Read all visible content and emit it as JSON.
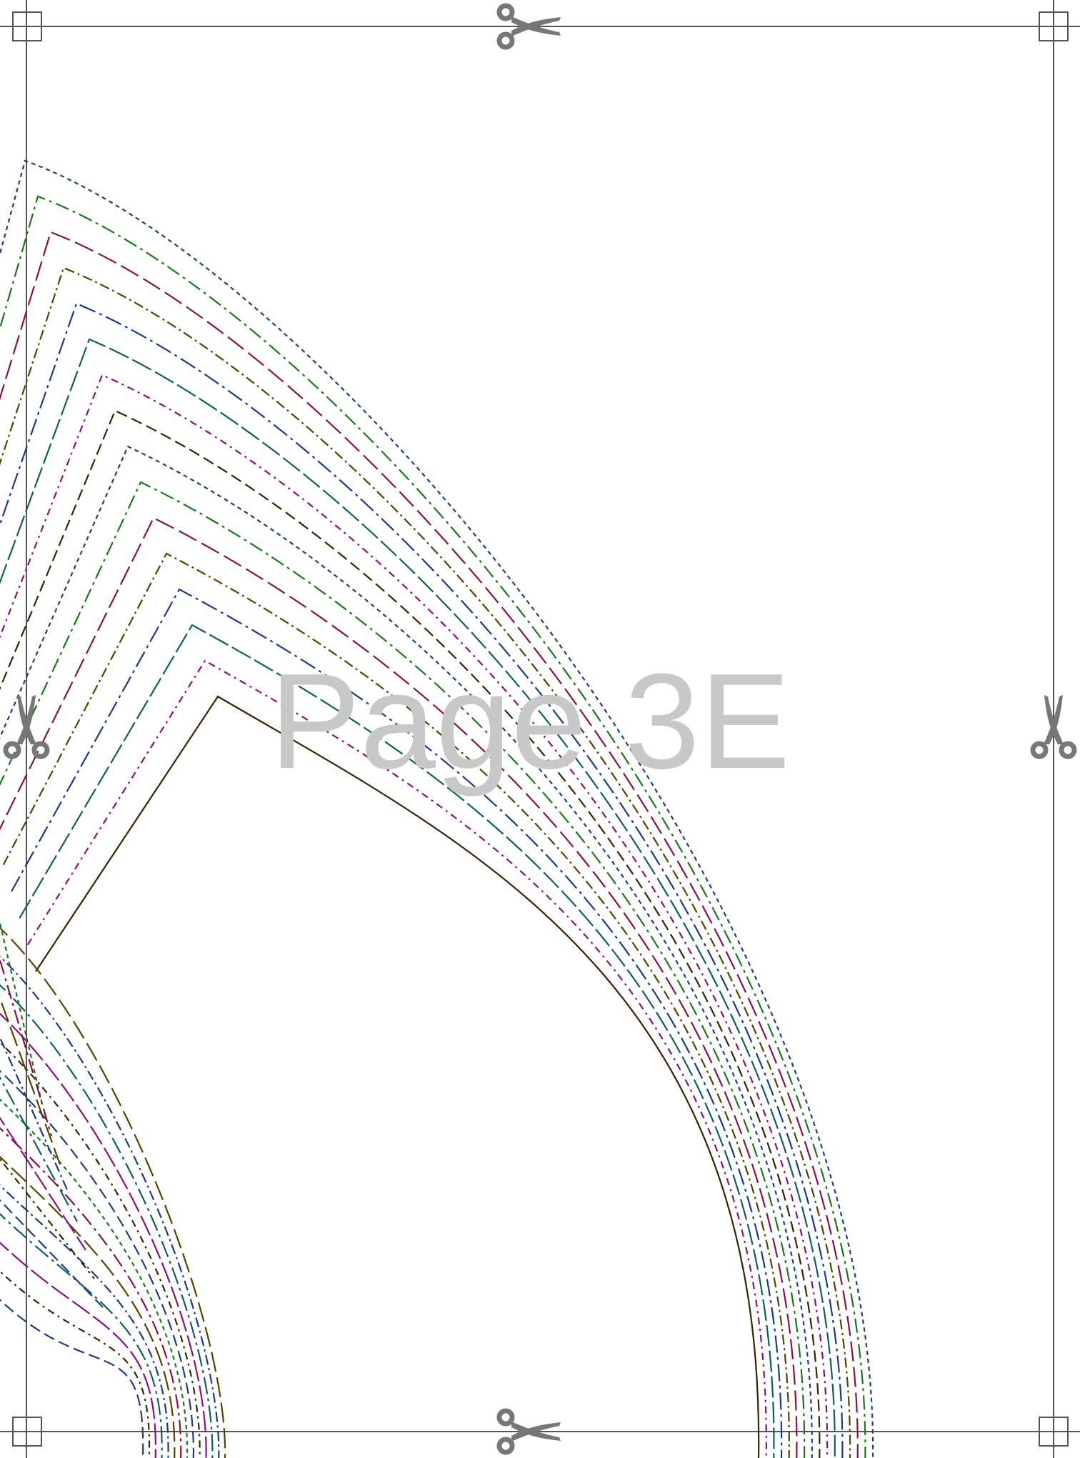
{
  "page": {
    "label": "Page 3E"
  },
  "colors": {
    "frame": "#555555",
    "scissors": "#777777",
    "label": "#c8c8c8"
  },
  "icons": {
    "scissors_top": "scissors-icon",
    "scissors_bottom": "scissors-icon",
    "scissors_left": "scissors-icon",
    "scissors_right": "scissors-icon",
    "registration_marks": "registration-square"
  },
  "pattern_lines": {
    "palette": [
      "#1f3f7f",
      "#1a7a1a",
      "#8b1044",
      "#554400",
      "#1a3a8a",
      "#0e6060",
      "#8b1080",
      "#3b2200"
    ]
  }
}
